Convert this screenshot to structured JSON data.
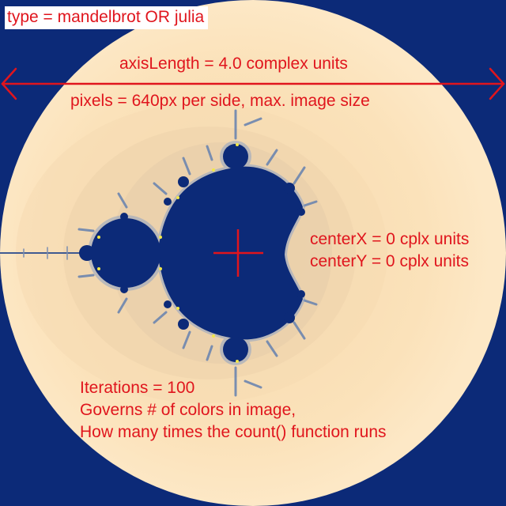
{
  "labels": {
    "type": "type = mandelbrot OR julia",
    "axis_length": "axisLength = 4.0 complex units",
    "pixels": "pixels = 640px per side, max. image size",
    "center_x": "centerX = 0 cplx units",
    "center_y": "centerY = 0 cplx units",
    "iterations": "Iterations = 100",
    "iterations_note_1": "Governs # of colors in image,",
    "iterations_note_2": "How many times the count() function runs"
  },
  "colors": {
    "background": "#0c2a78",
    "set_fill": "#0c2a78",
    "outer_glow": "#fde7c2",
    "annotation": "#e0151d",
    "label_box": "#ffffff"
  }
}
